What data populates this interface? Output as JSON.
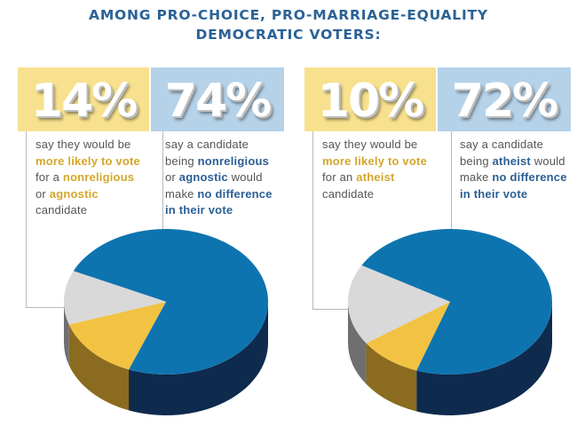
{
  "title": {
    "line1": "AMONG PRO-CHOICE, PRO-MARRIAGE-EQUALITY",
    "line2": "DEMOCRATIC VOTERS:"
  },
  "colors": {
    "title": "#2b6296",
    "yellow_box": "#f7e18e",
    "blue_box": "#b5d2e9",
    "pie_blue": "#0e74b0",
    "pie_blue_side": "#0e2a4d",
    "pie_yellow": "#f2c242",
    "pie_yellow_side": "#8a6b1f",
    "pie_gray": "#d9d9d9",
    "pie_gray_side": "#6f6f6f",
    "emphasis_yellow": "#d4a72c",
    "emphasis_blue": "#2b5f95"
  },
  "panels": [
    {
      "stats": [
        {
          "value": "14%",
          "lines": [
            [
              {
                "t": "say they would be"
              }
            ],
            [
              {
                "t": "more likely to vote",
                "em": "y"
              }
            ],
            [
              {
                "t": "for a "
              },
              {
                "t": "nonreligious",
                "em": "y"
              }
            ],
            [
              {
                "t": "or "
              },
              {
                "t": "agnostic",
                "em": "y"
              }
            ],
            [
              {
                "t": "candidate"
              }
            ]
          ]
        },
        {
          "value": "74%",
          "lines": [
            [
              {
                "t": "say a candidate"
              }
            ],
            [
              {
                "t": "being "
              },
              {
                "t": "nonreligious",
                "em": "b"
              }
            ],
            [
              {
                "t": "or "
              },
              {
                "t": "agnostic",
                "em": "b"
              },
              {
                "t": " would"
              }
            ],
            [
              {
                "t": "make "
              },
              {
                "t": "no difference",
                "em": "b"
              }
            ],
            [
              {
                "t": "in their vote",
                "em": "b"
              }
            ]
          ]
        }
      ]
    },
    {
      "stats": [
        {
          "value": "10%",
          "lines": [
            [
              {
                "t": "say they would be"
              }
            ],
            [
              {
                "t": "more likely to vote",
                "em": "y"
              }
            ],
            [
              {
                "t": "for an "
              },
              {
                "t": "atheist",
                "em": "y"
              }
            ],
            [
              {
                "t": "candidate"
              }
            ]
          ]
        },
        {
          "value": "72%",
          "lines": [
            [
              {
                "t": "say a candidate"
              }
            ],
            [
              {
                "t": "being "
              },
              {
                "t": "atheist",
                "em": "b"
              },
              {
                "t": " would"
              }
            ],
            [
              {
                "t": "make "
              },
              {
                "t": "no difference",
                "em": "b"
              }
            ],
            [
              {
                "t": "in their vote",
                "em": "b"
              }
            ]
          ]
        }
      ]
    }
  ],
  "chart_data": [
    {
      "type": "pie",
      "title": "",
      "categories": [
        "No difference",
        "More likely to vote",
        "Other"
      ],
      "values": [
        74,
        14,
        12
      ],
      "colors": [
        "#0e74b0",
        "#f2c242",
        "#d9d9d9"
      ]
    },
    {
      "type": "pie",
      "title": "",
      "categories": [
        "No difference",
        "More likely to vote",
        "Other"
      ],
      "values": [
        72,
        10,
        18
      ],
      "colors": [
        "#0e74b0",
        "#f2c242",
        "#d9d9d9"
      ]
    }
  ]
}
